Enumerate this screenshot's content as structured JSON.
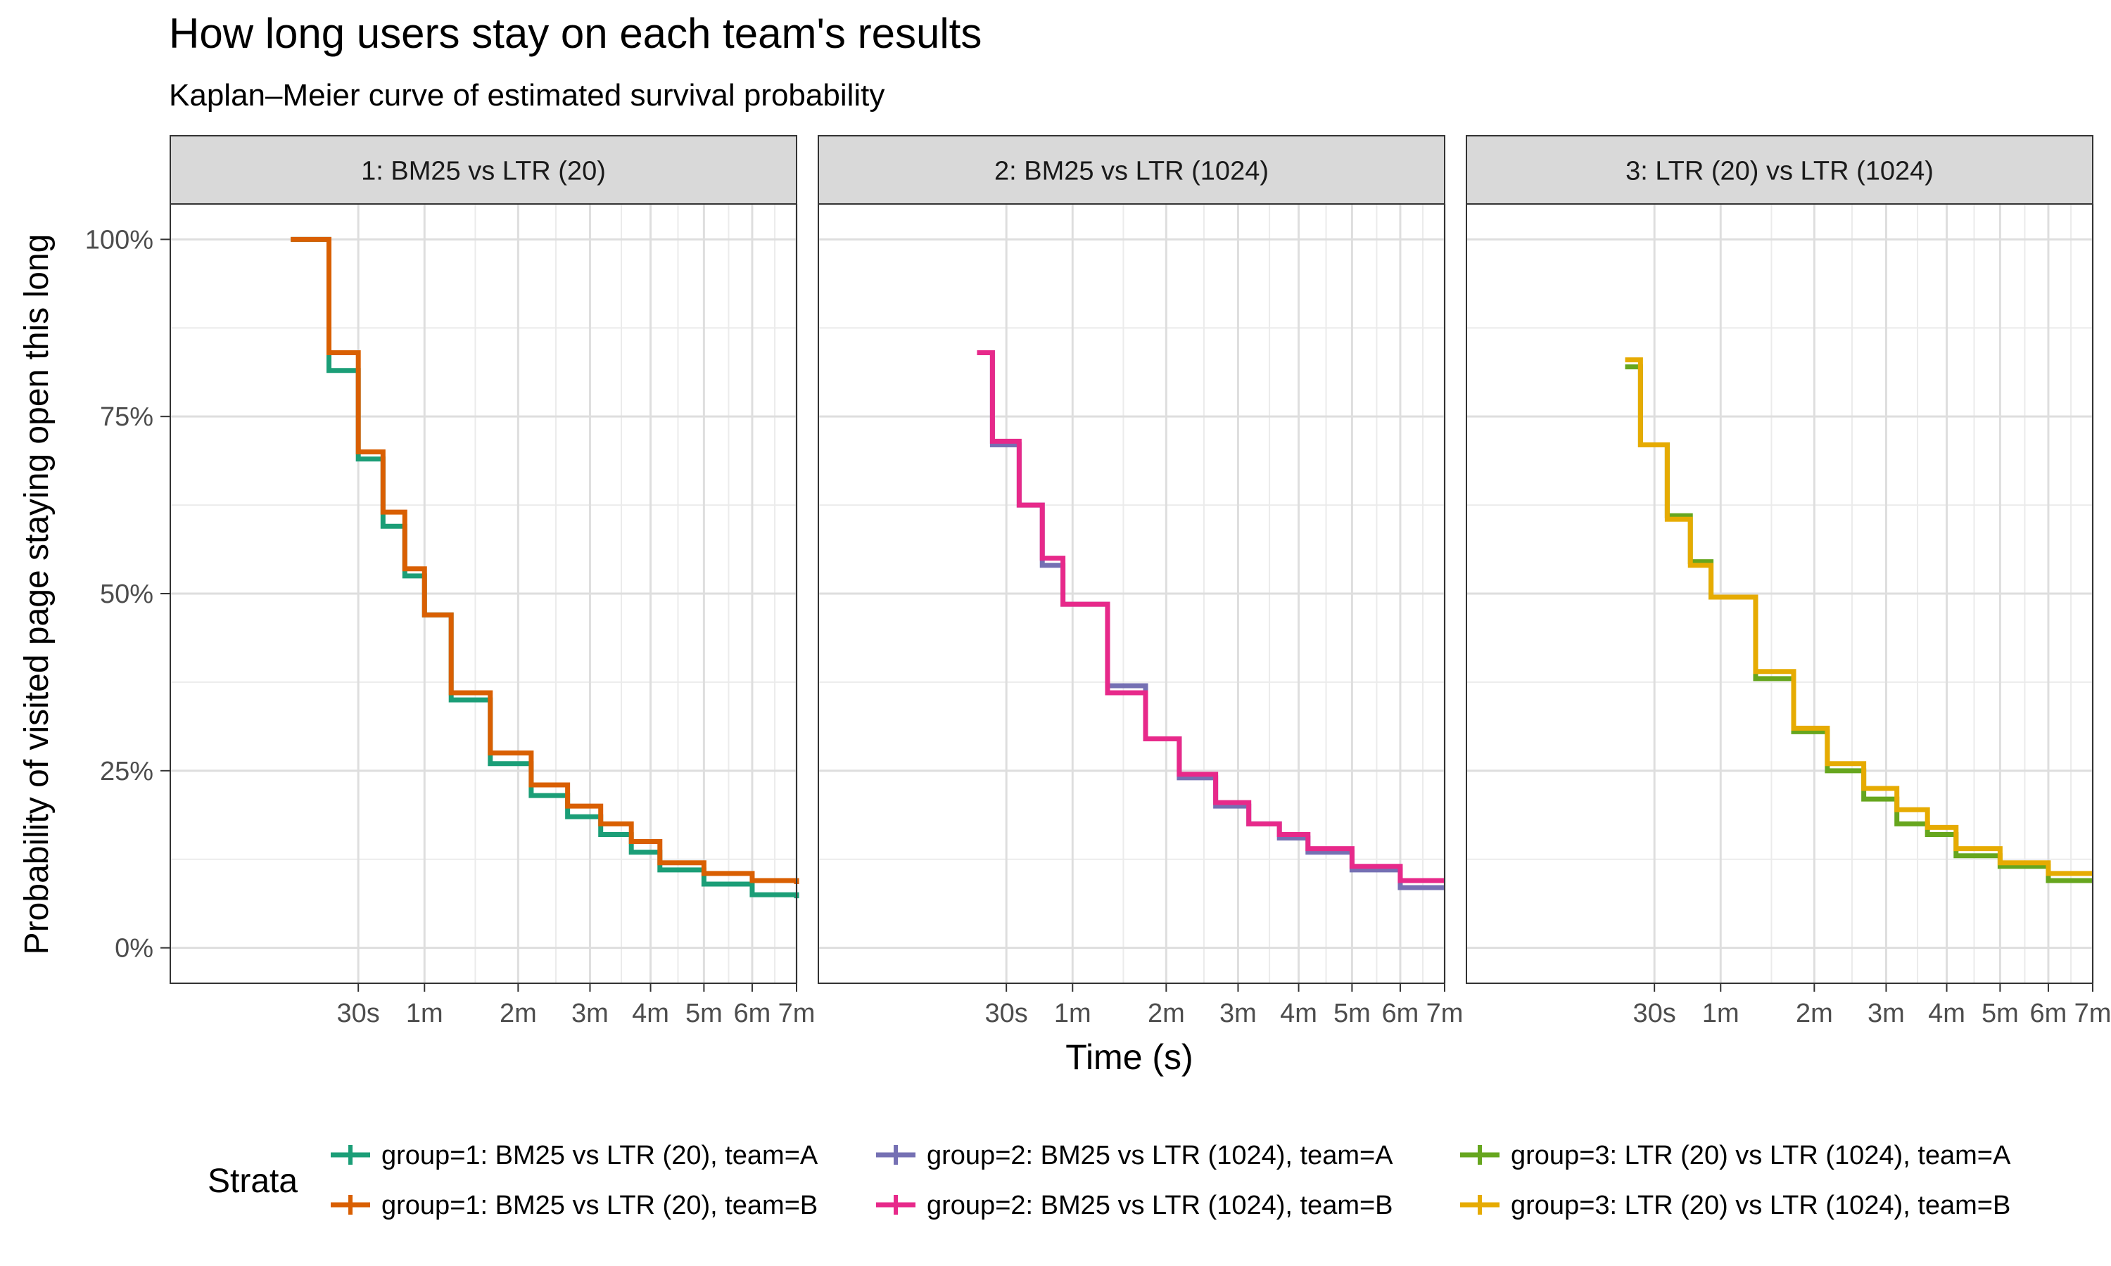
{
  "chart_data": {
    "type": "line",
    "title": "How long users stay on each team's results",
    "subtitle": "Kaplan–Meier curve of estimated survival probability",
    "xlabel": "Time (s)",
    "ylabel": "Probability of visited page staying open this long",
    "xscale": "sqrt",
    "xlim": [
      0,
      420
    ],
    "ylim": [
      -0.05,
      1.05
    ],
    "x_ticks": [
      {
        "value": 30,
        "label": "30s"
      },
      {
        "value": 60,
        "label": "1m"
      },
      {
        "value": 120,
        "label": "2m"
      },
      {
        "value": 180,
        "label": "3m"
      },
      {
        "value": 240,
        "label": "4m"
      },
      {
        "value": 300,
        "label": "5m"
      },
      {
        "value": 360,
        "label": "6m"
      },
      {
        "value": 420,
        "label": "7m"
      }
    ],
    "y_ticks": [
      {
        "value": 0,
        "label": "0%"
      },
      {
        "value": 0.25,
        "label": "25%"
      },
      {
        "value": 0.5,
        "label": "50%"
      },
      {
        "value": 0.75,
        "label": "75%"
      },
      {
        "value": 1,
        "label": "100%"
      }
    ],
    "grid": true,
    "legend": {
      "title": "Strata",
      "position": "bottom"
    },
    "panels": [
      {
        "label": "1: BM25 vs LTR (20)",
        "series": [
          {
            "name": "group=1: BM25 vs LTR (20), team=A",
            "color": "#1B9E77",
            "x": [
              10,
              20,
              30,
              40,
              50,
              60,
              75,
              100,
              130,
              160,
              190,
              220,
              250,
              300,
              360,
              420
            ],
            "y": [
              1.0,
              0.815,
              0.69,
              0.595,
              0.525,
              0.47,
              0.35,
              0.26,
              0.215,
              0.185,
              0.16,
              0.135,
              0.11,
              0.09,
              0.075,
              0.07
            ]
          },
          {
            "name": "group=1: BM25 vs LTR (20), team=B",
            "color": "#D95F02",
            "x": [
              10,
              20,
              30,
              40,
              50,
              60,
              75,
              100,
              130,
              160,
              190,
              220,
              250,
              300,
              360,
              420
            ],
            "y": [
              1.0,
              0.84,
              0.7,
              0.615,
              0.535,
              0.47,
              0.36,
              0.275,
              0.23,
              0.2,
              0.175,
              0.15,
              0.12,
              0.105,
              0.095,
              0.09
            ]
          }
        ]
      },
      {
        "label": "2: BM25 vs LTR (1024)",
        "series": [
          {
            "name": "group=2: BM25 vs LTR (1024), team=A",
            "color": "#7570B3",
            "x": [
              20,
              25,
              35,
              45,
              55,
              80,
              105,
              130,
              160,
              190,
              220,
              250,
              300,
              360,
              410,
              420
            ],
            "y": [
              0.84,
              0.71,
              0.625,
              0.54,
              0.485,
              0.37,
              0.295,
              0.24,
              0.2,
              0.175,
              0.155,
              0.135,
              0.11,
              0.085,
              0.085,
              0.085
            ]
          },
          {
            "name": "group=2: BM25 vs LTR (1024), team=B",
            "color": "#E7298A",
            "x": [
              20,
              25,
              35,
              45,
              55,
              80,
              105,
              130,
              160,
              190,
              220,
              250,
              300,
              360,
              410,
              420
            ],
            "y": [
              0.84,
              0.715,
              0.625,
              0.55,
              0.485,
              0.36,
              0.295,
              0.245,
              0.205,
              0.175,
              0.16,
              0.14,
              0.115,
              0.095,
              0.095,
              0.095
            ]
          }
        ]
      },
      {
        "label": "3: LTR (20) vs LTR (1024)",
        "series": [
          {
            "name": "group=3: LTR (20) vs LTR (1024), team=A",
            "color": "#66A61E",
            "x": [
              20,
              25,
              35,
              45,
              55,
              80,
              105,
              130,
              160,
              190,
              220,
              250,
              300,
              360,
              410,
              420
            ],
            "y": [
              0.82,
              0.71,
              0.61,
              0.545,
              0.495,
              0.38,
              0.305,
              0.25,
              0.21,
              0.175,
              0.16,
              0.13,
              0.115,
              0.095,
              0.095,
              0.095
            ]
          },
          {
            "name": "group=3: LTR (20) vs LTR (1024), team=B",
            "color": "#E6AB02",
            "x": [
              20,
              25,
              35,
              45,
              55,
              80,
              105,
              130,
              160,
              190,
              220,
              250,
              300,
              360,
              410,
              420
            ],
            "y": [
              0.83,
              0.71,
              0.605,
              0.54,
              0.495,
              0.39,
              0.31,
              0.26,
              0.225,
              0.195,
              0.17,
              0.14,
              0.12,
              0.105,
              0.105,
              0.105
            ]
          }
        ]
      }
    ]
  }
}
